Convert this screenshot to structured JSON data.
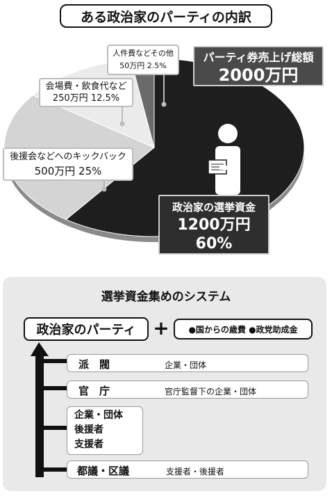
{
  "title": "ある政治家のパーティの内訳",
  "pie": {
    "header_label": "パーティ券売上げ総額",
    "header_value": "2000万円",
    "slices": [
      {
        "name": "政治家の選挙資金",
        "amount": "1200万円",
        "pct": "60%",
        "value": 60,
        "color": "#1e1e1e"
      },
      {
        "name": "後援会などへのキックバック",
        "amount": "500万円",
        "pct": "25%",
        "value": 25,
        "color": "#d4d4d4"
      },
      {
        "name": "会場費・飲食代など",
        "amount": "250万円",
        "pct": "12.5%",
        "value": 12.5,
        "color": "#ebebeb"
      },
      {
        "name": "人件費などその他",
        "amount": "50万円",
        "pct": "2.5%",
        "value": 2.5,
        "color": "#6a6a6a"
      }
    ]
  },
  "system": {
    "title": "選挙資金集めのシステム",
    "party": "政治家のパーティ",
    "plus": "+",
    "funds": "●国からの歳費 ●政党助成金",
    "rows": [
      {
        "label": "派　閥",
        "desc": "企業・団体"
      },
      {
        "label": "官　庁",
        "desc": "官庁監督下の企業・団体"
      },
      {
        "label": "企業・団体\n後援者\n支援者",
        "desc": ""
      },
      {
        "label": "都議・区議",
        "desc": "支援者・後援者"
      }
    ]
  }
}
